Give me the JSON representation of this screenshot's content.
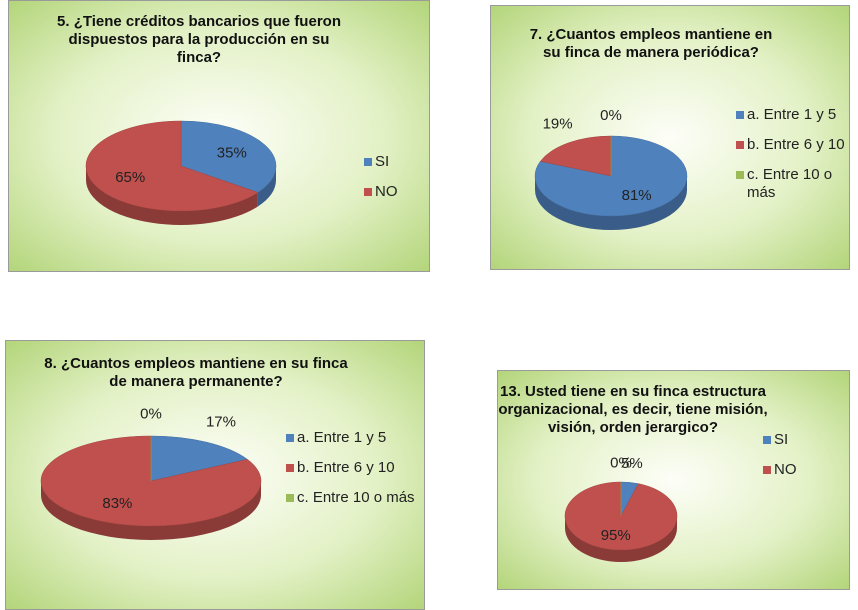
{
  "chart_data": [
    {
      "type": "pie",
      "title": "5. ¿Tiene créditos bancarios que fueron dispuestos para la producción en su finca?",
      "categories": [
        "SI",
        "NO"
      ],
      "values": [
        35,
        65
      ],
      "value_labels": [
        "35%",
        "65%"
      ],
      "colors": [
        "#4f81bd",
        "#c0504d"
      ],
      "legend": "right"
    },
    {
      "type": "pie",
      "title": "7. ¿Cuantos empleos mantiene en su finca de manera periódica?",
      "categories": [
        "a. Entre 1 y 5",
        "b. Entre 6 y 10",
        "c. Entre 10 o más"
      ],
      "values": [
        81,
        19,
        0
      ],
      "value_labels": [
        "81%",
        "19%",
        "0%"
      ],
      "colors": [
        "#4f81bd",
        "#c0504d",
        "#9bbb59"
      ],
      "legend": "right"
    },
    {
      "type": "pie",
      "title": "8. ¿Cuantos empleos mantiene en su finca de manera permanente?",
      "categories": [
        "a. Entre 1 y 5",
        "b. Entre 6 y 10",
        "c. Entre 10 o más"
      ],
      "values": [
        17,
        83,
        0
      ],
      "value_labels": [
        "17%",
        "83%",
        "0%"
      ],
      "colors": [
        "#4f81bd",
        "#c0504d",
        "#9bbb59"
      ],
      "legend": "right"
    },
    {
      "type": "pie",
      "title": "13. Usted tiene en su finca estructura organizacional, es decir, tiene misión, visión, orden jerargico?",
      "categories": [
        "SI",
        "NO",
        null
      ],
      "values": [
        5,
        95,
        0
      ],
      "value_labels": [
        "5%",
        "95%",
        "0%"
      ],
      "colors": [
        "#4f81bd",
        "#c0504d",
        "#9bbb59"
      ],
      "legend": "right"
    }
  ]
}
